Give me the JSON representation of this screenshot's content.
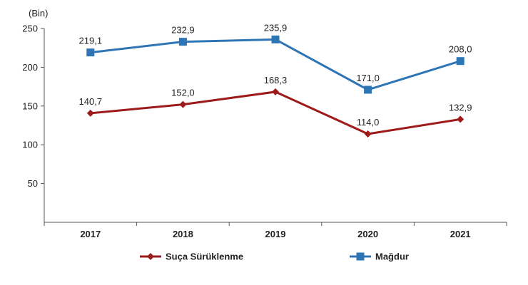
{
  "chart_data": {
    "type": "line",
    "title": "",
    "xlabel": "",
    "ylabel": "",
    "unit_label": "(Bin)",
    "x": [
      "2017",
      "2018",
      "2019",
      "2020",
      "2021"
    ],
    "ylim": [
      0,
      250
    ],
    "yticks": [
      "50",
      "100",
      "150",
      "200",
      "250"
    ],
    "grid": false,
    "legend_position": "bottom",
    "series": [
      {
        "name": "Suça Sürüklenme",
        "color": "#9e1b1b",
        "marker": "diamond",
        "values": [
          140.7,
          152.0,
          168.3,
          114.0,
          132.9
        ],
        "labels": [
          "140,7",
          "152,0",
          "168,3",
          "114,0",
          "132,9"
        ]
      },
      {
        "name": "Mağdur",
        "color": "#2e75b6",
        "marker": "square",
        "values": [
          219.1,
          232.9,
          235.9,
          171.0,
          208.0
        ],
        "labels": [
          "219,1",
          "232,9",
          "235,9",
          "171,0",
          "208,0"
        ]
      }
    ]
  }
}
